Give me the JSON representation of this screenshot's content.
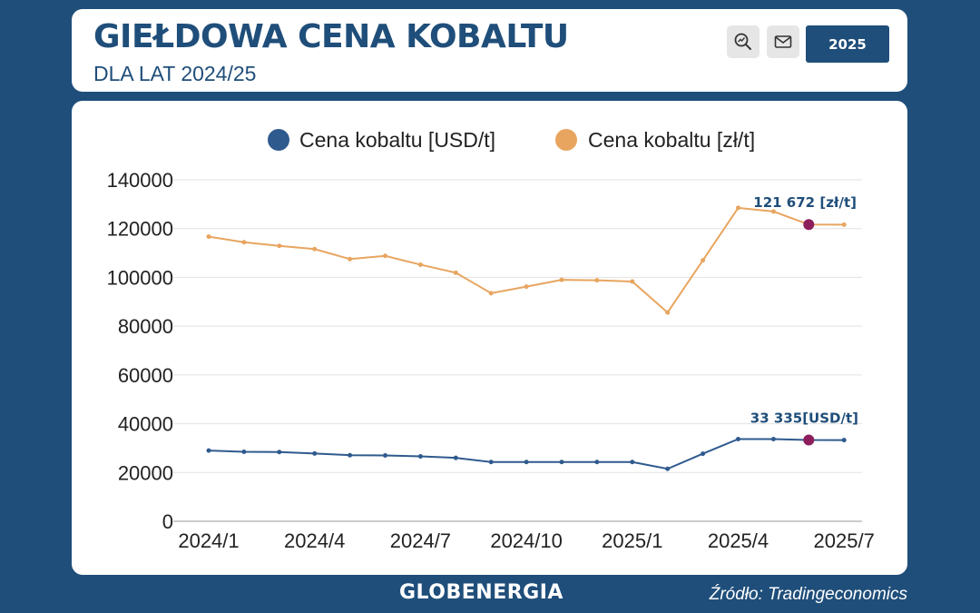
{
  "header": {
    "title": "GIEŁDOWA CENA KOBALTU",
    "subtitle": "DLA LAT 2024/25",
    "year_button": "2025",
    "search_icon": "search-chart-icon",
    "mail_icon": "mail-icon"
  },
  "footer": {
    "logo": "GLOBENERGIA",
    "source": "Źródło: Tradingeconomics"
  },
  "colors": {
    "background": "#1f4e7a",
    "usd_series": "#2f5a8e",
    "pln_series": "#e8a560",
    "highlight": "#8b1e5b"
  },
  "chart_data": {
    "type": "line",
    "x": [
      "2024/1",
      "2024/2",
      "2024/3",
      "2024/4",
      "2024/5",
      "2024/6",
      "2024/7",
      "2024/8",
      "2024/9",
      "2024/10",
      "2024/11",
      "2024/12",
      "2025/1",
      "2025/2",
      "2025/3",
      "2025/4",
      "2025/5",
      "2025/6",
      "2025/7"
    ],
    "x_tick_labels": [
      "2024/1",
      "2024/4",
      "2024/7",
      "2024/10",
      "2025/1",
      "2025/4",
      "2025/7"
    ],
    "ylim": [
      0,
      140000
    ],
    "y_ticks": [
      "0",
      "20000",
      "40000",
      "60000",
      "80000",
      "100000",
      "120000",
      "140000"
    ],
    "grid": true,
    "legend_position": "top",
    "series": [
      {
        "name": "Cena kobaltu [USD/t]",
        "values": [
          29000,
          28500,
          28400,
          27800,
          27100,
          27000,
          26600,
          26000,
          24300,
          24300,
          24300,
          24300,
          24300,
          21500,
          27700,
          33700,
          33700,
          33335,
          33300
        ]
      },
      {
        "name": "Cena kobaltu [zł/t]",
        "values": [
          116700,
          114400,
          112900,
          111600,
          107500,
          108800,
          105200,
          101900,
          93500,
          96200,
          99000,
          98800,
          98300,
          85600,
          107000,
          128500,
          127000,
          121672,
          121600
        ]
      }
    ],
    "highlight_index": 17,
    "annotations": {
      "pln": "121 672 [zł/t]",
      "usd": "33 335[USD/t]"
    }
  }
}
